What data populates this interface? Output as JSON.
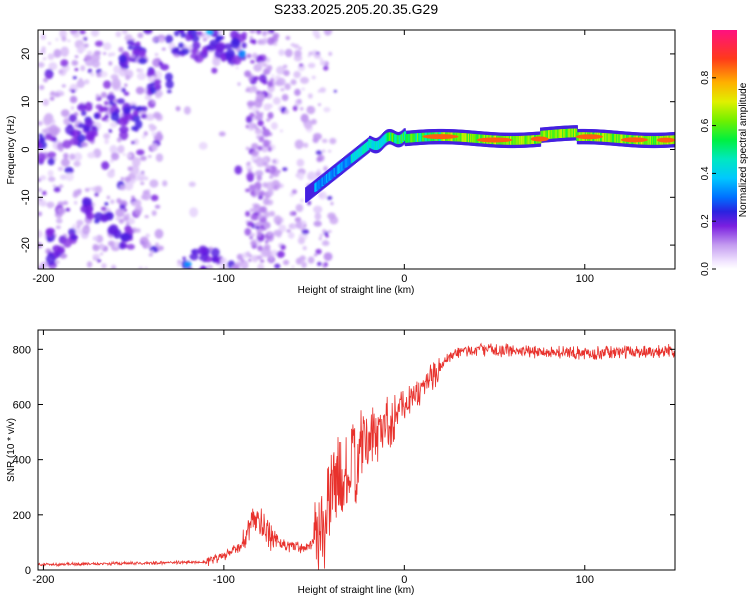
{
  "title": "S233.2025.205.20.35.G29",
  "chart_data": [
    {
      "type": "heatmap",
      "xlabel": "Height of straight line (km)",
      "ylabel": "Frequency (Hz)",
      "xlim": [
        -203,
        150
      ],
      "ylim": [
        -25,
        25
      ],
      "xticks": [
        -200,
        -100,
        0,
        100
      ],
      "yticks": [
        -20,
        -10,
        0,
        10,
        20
      ],
      "colorbar": {
        "label": "Normalized spectral amplitude",
        "range": [
          0,
          1
        ],
        "ticks": [
          0.0,
          0.2,
          0.4,
          0.6,
          0.8
        ],
        "tick_labels": [
          "0.0",
          "0.2",
          "0.4",
          "0.6",
          "0.8"
        ]
      },
      "ridge": {
        "description_points": [
          {
            "x": -40,
            "y": -5
          },
          {
            "x": -20,
            "y": 1
          },
          {
            "x": 0,
            "y": 3
          },
          {
            "x": 20,
            "y": 1.5
          },
          {
            "x": 80,
            "y": 3
          },
          {
            "x": 150,
            "y": 2.5
          }
        ]
      }
    },
    {
      "type": "line",
      "xlabel": "Height of straight line (km)",
      "ylabel": "SNR (10 * v/v)",
      "xlim": [
        -203,
        150
      ],
      "ylim": [
        0,
        870
      ],
      "xticks": [
        -200,
        -100,
        0,
        100
      ],
      "yticks": [
        0,
        200,
        400,
        600,
        800
      ],
      "color": "#e8322d",
      "x": [
        -200,
        -140,
        -110,
        -100,
        -90,
        -82,
        -75,
        -65,
        -55,
        -45,
        -38,
        -34,
        -30,
        -25,
        -20,
        -15,
        -10,
        -5,
        0,
        10,
        20,
        30,
        40,
        60,
        80,
        100,
        120,
        150
      ],
      "y": [
        20,
        25,
        30,
        50,
        90,
        200,
        120,
        90,
        80,
        140,
        350,
        300,
        350,
        420,
        470,
        500,
        530,
        570,
        600,
        660,
        740,
        790,
        800,
        795,
        790,
        785,
        790,
        795
      ]
    }
  ]
}
